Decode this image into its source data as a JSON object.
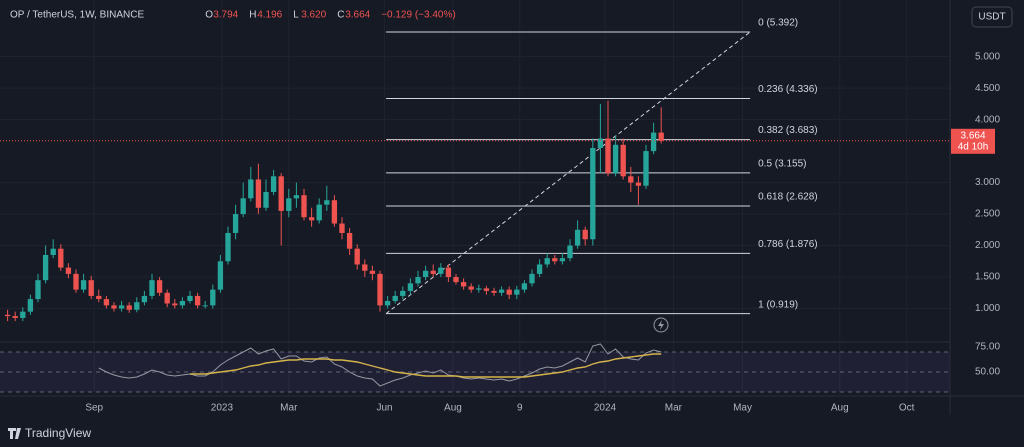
{
  "chart_data": {
    "type": "candlestick",
    "header": {
      "symbol": "OP / TetherUS, 1W, BINANCE",
      "open_label": "O",
      "open": "3.794",
      "high_label": "H",
      "high": "4.196",
      "low_label": "L",
      "low": "3.620",
      "close_label": "C",
      "close": "3.664",
      "change": "−0.129 (−3.40%)"
    },
    "currency": "USDT",
    "last_price": {
      "value": 3.664,
      "label": "3.664",
      "countdown": "4d 10h"
    },
    "up_color": "#26a69a",
    "down_color": "#ef5350",
    "grid": true,
    "xlim": [
      -1,
      124
    ],
    "xticks": [
      {
        "value": 11.4,
        "label": "Sep"
      },
      {
        "value": 28.2,
        "label": "2023"
      },
      {
        "value": 37,
        "label": "Mar"
      },
      {
        "value": 49.6,
        "label": "Jun"
      },
      {
        "value": 58.6,
        "label": "Aug"
      },
      {
        "value": 67.4,
        "label": "9"
      },
      {
        "value": 78.6,
        "label": "2024"
      },
      {
        "value": 87.6,
        "label": "Mar"
      },
      {
        "value": 96.7,
        "label": "May"
      },
      {
        "value": 109.5,
        "label": "Aug"
      },
      {
        "value": 118.3,
        "label": "Oct"
      }
    ],
    "ylim": [
      0.5,
      5.9
    ],
    "yticks": [
      {
        "value": 1,
        "label": "1.000"
      },
      {
        "value": 1.5,
        "label": "1.500"
      },
      {
        "value": 2,
        "label": "2.000"
      },
      {
        "value": 2.5,
        "label": "2.500"
      },
      {
        "value": 3,
        "label": "3.000"
      },
      {
        "value": 4,
        "label": "4.000"
      },
      {
        "value": 4.5,
        "label": "4.500"
      },
      {
        "value": 5,
        "label": "5.000"
      }
    ],
    "open": [
      0.9,
      0.88,
      0.85,
      0.95,
      1.15,
      1.45,
      1.85,
      1.95,
      1.65,
      1.55,
      1.3,
      1.45,
      1.2,
      1.15,
      1.05,
      1.0,
      1.05,
      0.98,
      1.1,
      1.2,
      1.45,
      1.25,
      1.08,
      1.05,
      1.12,
      1.2,
      1.05,
      1.05,
      1.3,
      1.75,
      2.2,
      2.5,
      2.75,
      3.05,
      2.6,
      2.85,
      3.1,
      2.55,
      2.75,
      2.8,
      2.45,
      2.4,
      2.65,
      2.72,
      2.35,
      2.2,
      1.95,
      1.7,
      1.6,
      1.55,
      1.05,
      1.12,
      1.2,
      1.28,
      1.4,
      1.5,
      1.6,
      1.55,
      1.65,
      1.5,
      1.42,
      1.35,
      1.3,
      1.32,
      1.28,
      1.25,
      1.3,
      1.22,
      1.3,
      1.4,
      1.55,
      1.7,
      1.8,
      1.75,
      1.8,
      2.0,
      2.25,
      2.1,
      3.55,
      3.7,
      3.15,
      3.6,
      3.1,
      3.0,
      2.95,
      3.5,
      3.794
    ],
    "high": [
      0.98,
      0.95,
      1.02,
      1.22,
      1.55,
      2.0,
      2.1,
      2.02,
      1.72,
      1.62,
      1.55,
      1.52,
      1.3,
      1.2,
      1.1,
      1.12,
      1.1,
      1.18,
      1.28,
      1.55,
      1.5,
      1.3,
      1.15,
      1.18,
      1.28,
      1.25,
      1.12,
      1.38,
      1.85,
      2.3,
      2.65,
      3.0,
      3.25,
      3.3,
      3.05,
      3.2,
      3.15,
      2.9,
      3.0,
      2.9,
      2.6,
      2.75,
      2.95,
      2.8,
      2.45,
      2.28,
      2.02,
      1.78,
      1.68,
      1.6,
      1.2,
      1.28,
      1.35,
      1.48,
      1.6,
      1.68,
      1.7,
      1.72,
      1.7,
      1.55,
      1.48,
      1.4,
      1.38,
      1.36,
      1.33,
      1.35,
      1.35,
      1.36,
      1.45,
      1.62,
      1.78,
      1.88,
      1.85,
      1.88,
      2.1,
      2.4,
      2.3,
      3.7,
      4.25,
      4.3,
      3.75,
      3.7,
      3.25,
      3.1,
      3.6,
      3.95,
      4.196
    ],
    "low": [
      0.8,
      0.8,
      0.8,
      0.9,
      1.1,
      1.4,
      1.8,
      1.6,
      1.48,
      1.25,
      1.25,
      1.15,
      1.1,
      1.0,
      0.95,
      0.95,
      0.93,
      0.94,
      1.05,
      1.15,
      1.2,
      1.02,
      1.0,
      1.0,
      1.08,
      1.0,
      1.0,
      1.0,
      1.25,
      1.7,
      2.1,
      2.45,
      2.7,
      2.5,
      2.55,
      2.8,
      2.0,
      2.45,
      2.6,
      2.4,
      2.3,
      2.35,
      2.55,
      2.3,
      2.1,
      1.85,
      1.62,
      1.5,
      1.45,
      0.95,
      1.0,
      1.08,
      1.15,
      1.22,
      1.35,
      1.45,
      1.5,
      1.5,
      1.42,
      1.38,
      1.3,
      1.25,
      1.25,
      1.22,
      1.2,
      1.2,
      1.15,
      1.15,
      1.25,
      1.35,
      1.5,
      1.65,
      1.7,
      1.7,
      1.75,
      1.95,
      2.0,
      2.0,
      3.15,
      3.1,
      3.1,
      3.05,
      2.85,
      2.65,
      2.9,
      3.45,
      3.62
    ],
    "close": [
      0.88,
      0.85,
      0.95,
      1.15,
      1.45,
      1.85,
      1.95,
      1.65,
      1.55,
      1.3,
      1.45,
      1.2,
      1.15,
      1.05,
      1.0,
      1.05,
      0.98,
      1.1,
      1.2,
      1.45,
      1.25,
      1.08,
      1.05,
      1.12,
      1.2,
      1.05,
      1.05,
      1.3,
      1.75,
      2.2,
      2.5,
      2.75,
      3.05,
      2.6,
      2.85,
      3.1,
      2.55,
      2.75,
      2.8,
      2.45,
      2.4,
      2.65,
      2.72,
      2.35,
      2.2,
      1.95,
      1.7,
      1.6,
      1.55,
      1.05,
      1.12,
      1.2,
      1.28,
      1.4,
      1.5,
      1.6,
      1.55,
      1.65,
      1.5,
      1.42,
      1.35,
      1.3,
      1.32,
      1.28,
      1.25,
      1.3,
      1.22,
      1.3,
      1.4,
      1.55,
      1.7,
      1.8,
      1.75,
      1.8,
      2.0,
      2.25,
      2.1,
      3.55,
      3.7,
      3.15,
      3.6,
      3.1,
      3.0,
      2.95,
      3.5,
      3.794,
      3.664
    ],
    "fib_levels": [
      {
        "label": "0 (5.392)",
        "value": 5.392
      },
      {
        "label": "0.236 (4.336)",
        "value": 4.336
      },
      {
        "label": "0.382 (3.683)",
        "value": 3.683
      },
      {
        "label": "0.5 (3.155)",
        "value": 3.155
      },
      {
        "label": "0.618 (2.628)",
        "value": 2.628
      },
      {
        "label": "0.786 (1.876)",
        "value": 1.876
      },
      {
        "label": "1 (0.919)",
        "value": 0.919
      }
    ],
    "fib_x": [
      49.8,
      97.7
    ],
    "rsi": {
      "ylim": [
        27,
        80
      ],
      "yticks": [
        {
          "value": 75,
          "label": "75.00"
        },
        {
          "value": 50,
          "label": "50.00"
        }
      ],
      "bands": [
        70,
        50,
        30
      ],
      "series": [
        {
          "color": "#9598a1",
          "values": [
            null,
            null,
            null,
            null,
            null,
            null,
            null,
            null,
            null,
            null,
            null,
            null,
            54,
            50,
            47,
            45,
            44,
            45,
            48,
            52,
            50,
            47,
            46,
            47,
            48,
            46,
            46,
            50,
            57,
            62,
            66,
            70,
            74,
            68,
            71,
            73,
            63,
            66,
            66,
            61,
            60,
            64,
            65,
            58,
            55,
            50,
            46,
            44,
            43,
            36,
            39,
            42,
            44,
            47,
            49,
            51,
            49,
            52,
            47,
            46,
            44,
            43,
            44,
            43,
            42,
            43,
            41,
            43,
            46,
            49,
            53,
            55,
            54,
            56,
            60,
            64,
            60,
            76,
            78,
            68,
            73,
            65,
            63,
            62,
            69,
            72,
            70
          ]
        },
        {
          "color": "#d4b44a",
          "values": [
            null,
            null,
            null,
            null,
            null,
            null,
            null,
            null,
            null,
            null,
            null,
            null,
            null,
            null,
            null,
            null,
            null,
            null,
            null,
            null,
            null,
            null,
            null,
            null,
            48,
            48,
            48,
            49,
            50,
            51,
            52,
            54,
            56,
            57,
            59,
            60,
            61,
            62,
            62,
            63,
            63,
            63,
            63,
            62,
            62,
            61,
            60,
            58,
            56,
            54,
            52,
            50,
            49,
            48,
            47,
            46,
            46,
            46,
            46,
            46,
            45,
            45,
            45,
            45,
            45,
            45,
            45,
            45,
            45,
            46,
            47,
            48,
            49,
            50,
            52,
            54,
            55,
            58,
            60,
            61,
            63,
            64,
            65,
            66,
            67,
            68,
            68
          ]
        }
      ]
    },
    "brand": "TradingView"
  }
}
